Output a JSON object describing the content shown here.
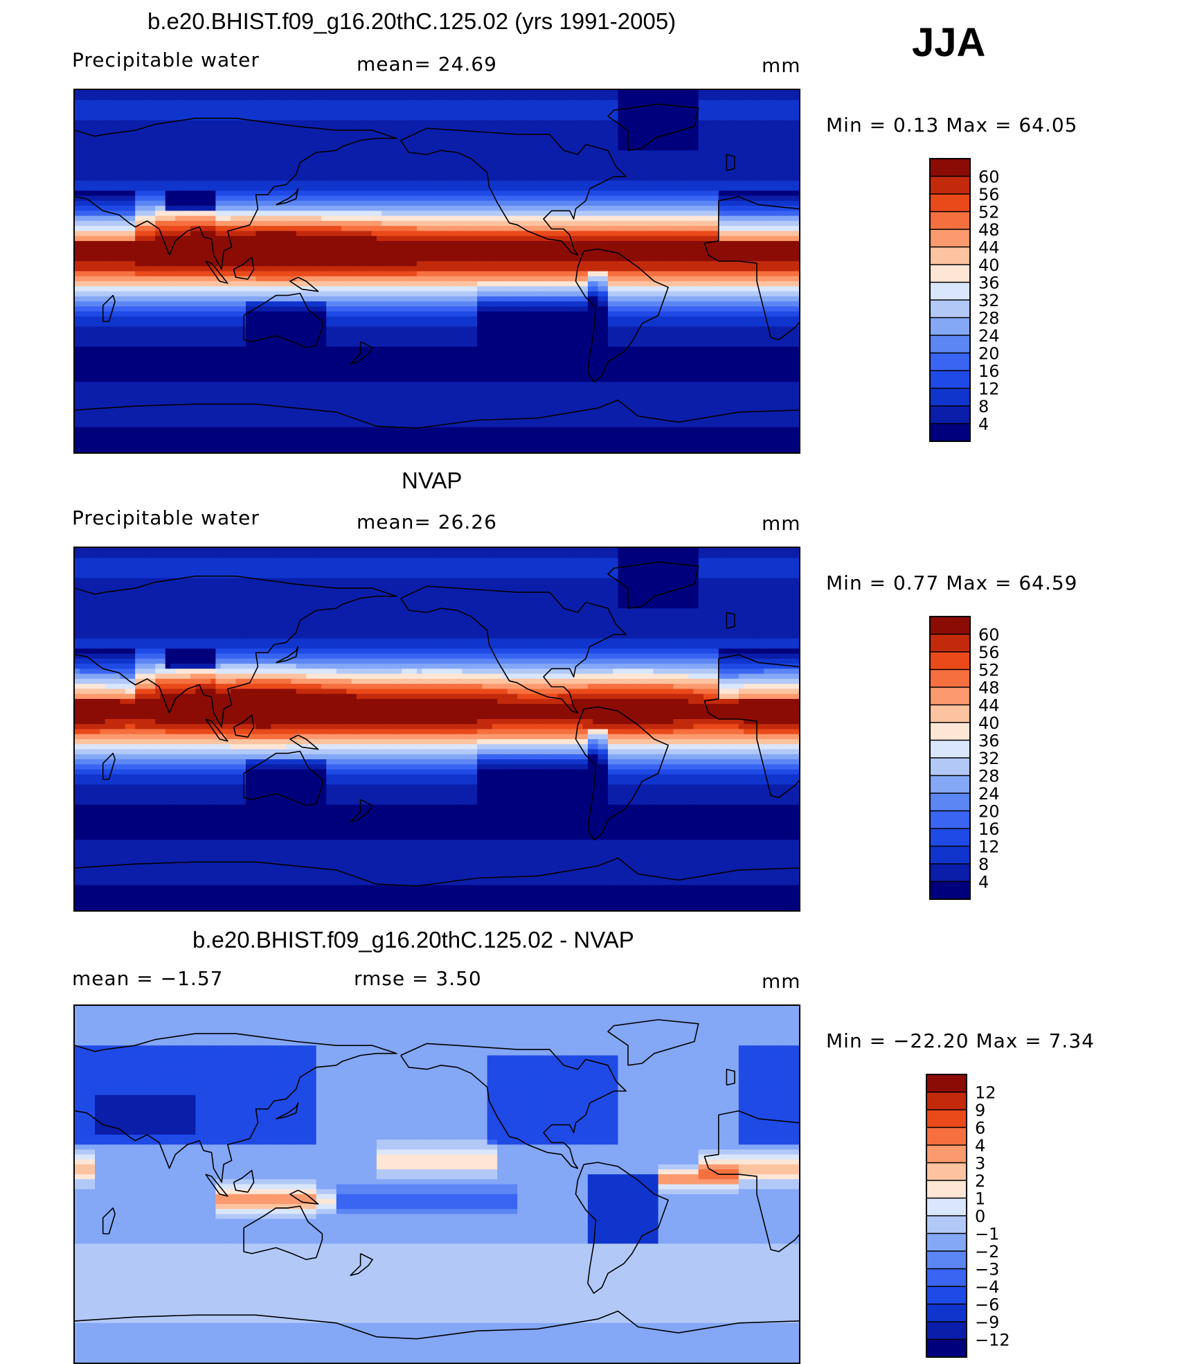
{
  "season": "JJA",
  "panels": [
    {
      "title": "b.e20.BHIST.f09_g16.20thC.125.02 (yrs 1991-2005)",
      "left_label": "Precipitable  water",
      "center_label": "mean=   24.69",
      "units": "mm",
      "minmax": "Min  =     0.13  Max  =    64.05"
    },
    {
      "title": "NVAP",
      "left_label": "Precipitable  water",
      "center_label": "mean=   26.26",
      "units": "mm",
      "minmax": "Min  =     0.77  Max  =    64.59"
    },
    {
      "title": "b.e20.BHIST.f09_g16.20thC.125.02 - NVAP",
      "left_label": "mean  =    −1.57",
      "center_label": "rmse  =      3.50",
      "units": "mm",
      "minmax": "Min  = −22.20  Max  =      7.34"
    }
  ],
  "chart_data": [
    {
      "type": "heatmap",
      "title": "b.e20.BHIST.f09_g16.20thC.125.02 (yrs 1991-2005)",
      "variable": "Precipitable water",
      "units": "mm",
      "mean": 24.69,
      "min": 0.13,
      "max": 64.05,
      "colorbar_levels": [
        4,
        8,
        12,
        16,
        20,
        24,
        28,
        32,
        36,
        40,
        44,
        48,
        52,
        56,
        60
      ],
      "colorbar_colors": [
        "#00007d",
        "#0a1eaa",
        "#1035cd",
        "#1f4ae6",
        "#3a64f2",
        "#5c86f4",
        "#84a7f6",
        "#b2c9f8",
        "#dae6fb",
        "#fde6d6",
        "#fcc3a1",
        "#fb9a6e",
        "#f6703f",
        "#ea4a1a",
        "#c32a0c",
        "#8a0c05"
      ]
    },
    {
      "type": "heatmap",
      "title": "NVAP",
      "variable": "Precipitable water",
      "units": "mm",
      "mean": 26.26,
      "min": 0.77,
      "max": 64.59,
      "colorbar_levels": [
        4,
        8,
        12,
        16,
        20,
        24,
        28,
        32,
        36,
        40,
        44,
        48,
        52,
        56,
        60
      ],
      "colorbar_colors": [
        "#00007d",
        "#0a1eaa",
        "#1035cd",
        "#1f4ae6",
        "#3a64f2",
        "#5c86f4",
        "#84a7f6",
        "#b2c9f8",
        "#dae6fb",
        "#fde6d6",
        "#fcc3a1",
        "#fb9a6e",
        "#f6703f",
        "#ea4a1a",
        "#c32a0c",
        "#8a0c05"
      ]
    },
    {
      "type": "heatmap",
      "title": "b.e20.BHIST.f09_g16.20thC.125.02 - NVAP",
      "units": "mm",
      "mean": -1.57,
      "rmse": 3.5,
      "min": -22.2,
      "max": 7.34,
      "colorbar_levels": [
        -12,
        -9,
        -6,
        -4,
        -3,
        -2,
        -1,
        0,
        1,
        2,
        3,
        4,
        6,
        9,
        12
      ],
      "colorbar_colors": [
        "#00007d",
        "#0a1eaa",
        "#1035cd",
        "#1f4ae6",
        "#3a64f2",
        "#5c86f4",
        "#84a7f6",
        "#b2c9f8",
        "#dae6fb",
        "#fde6d6",
        "#fcc3a1",
        "#fb9a6e",
        "#f6703f",
        "#ea4a1a",
        "#c32a0c",
        "#8a0c05"
      ]
    }
  ]
}
